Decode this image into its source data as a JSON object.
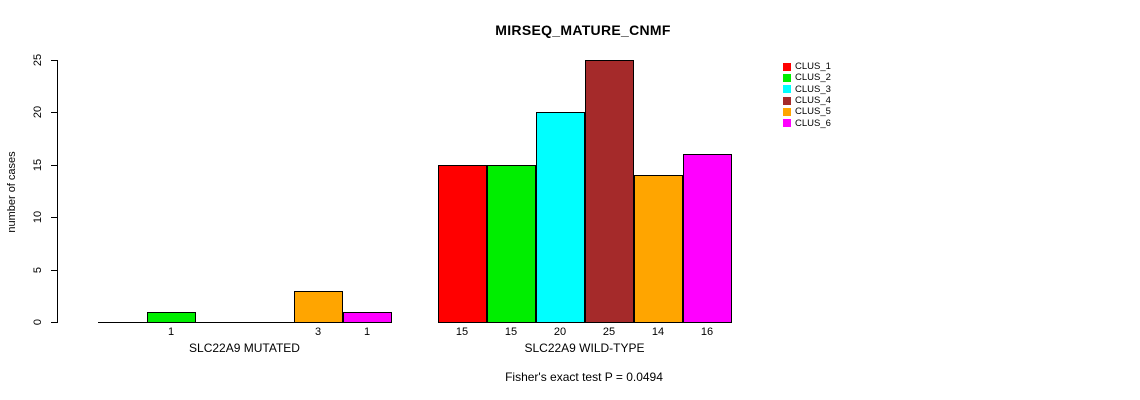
{
  "title": "MIRSEQ_MATURE_CNMF",
  "footer": "Fisher's exact test P = 0.0494",
  "chart_data": {
    "type": "bar",
    "title": "MIRSEQ_MATURE_CNMF",
    "xlabel": "",
    "ylabel": "number of cases",
    "ylim": [
      0,
      25
    ],
    "yticks": [
      0,
      5,
      10,
      15,
      20,
      25
    ],
    "grid": false,
    "legend_position": "right",
    "categories": [
      "SLC22A9 MUTATED",
      "SLC22A9 WILD-TYPE"
    ],
    "series": [
      {
        "name": "CLUS_1",
        "color": "#FF0000",
        "values": [
          0,
          15
        ]
      },
      {
        "name": "CLUS_2",
        "color": "#00EE00",
        "values": [
          1,
          15
        ]
      },
      {
        "name": "CLUS_3",
        "color": "#00FFFF",
        "values": [
          0,
          20
        ]
      },
      {
        "name": "CLUS_4",
        "color": "#A52A2A",
        "values": [
          0,
          25
        ]
      },
      {
        "name": "CLUS_5",
        "color": "#FFA500",
        "values": [
          3,
          14
        ]
      },
      {
        "name": "CLUS_6",
        "color": "#FF00FF",
        "values": [
          1,
          16
        ]
      }
    ],
    "bar_value_labels": "shown under each bar when value > 0",
    "annotation": "Fisher's exact test P = 0.0494"
  }
}
